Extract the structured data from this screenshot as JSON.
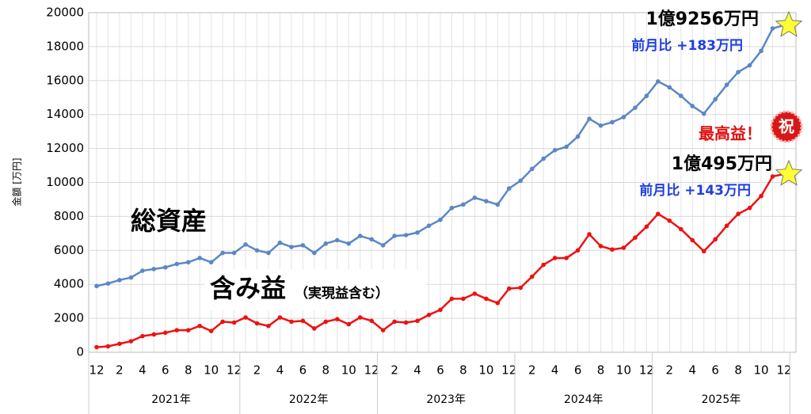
{
  "chart_data": {
    "type": "line",
    "y_label": "金額 [万円]",
    "categories": [
      "12",
      null,
      "2",
      null,
      "4",
      null,
      "6",
      null,
      "8",
      null,
      "10",
      null,
      "12",
      null,
      "2",
      null,
      "4",
      null,
      "6",
      null,
      "8",
      null,
      "10",
      null,
      "12",
      null,
      "2",
      null,
      "4",
      null,
      "6",
      null,
      "8",
      null,
      "10",
      null,
      "12",
      null,
      "2",
      null,
      "4",
      null,
      "6",
      null,
      "8",
      null,
      "10",
      null,
      "12",
      null,
      "2",
      null,
      "4",
      null,
      "6",
      null,
      "8",
      null,
      "10",
      null,
      "12"
    ],
    "year_groups": [
      "2021年",
      "2022年",
      "2023年",
      "2024年",
      "2025年"
    ],
    "series": [
      {
        "name": "総資産",
        "color": "#5b87c5",
        "values": [
          3900,
          4050,
          4250,
          4400,
          4800,
          4900,
          5000,
          5200,
          5300,
          5550,
          5300,
          5850,
          5850,
          6350,
          6000,
          5850,
          6450,
          6200,
          6300,
          5850,
          6400,
          6600,
          6400,
          6850,
          6650,
          6300,
          6850,
          6900,
          7050,
          7450,
          7800,
          8500,
          8700,
          9100,
          8900,
          8700,
          9650,
          10100,
          10800,
          11400,
          11900,
          12100,
          12700,
          13750,
          13350,
          13550,
          13850,
          14400,
          15100,
          15950,
          15600,
          15100,
          14500,
          14050,
          14900,
          15750,
          16500,
          16900,
          17750,
          19073,
          19256
        ]
      },
      {
        "name": "含み益",
        "name_note": "（実現益含む）",
        "color": "#ee1111",
        "values": [
          300,
          350,
          500,
          650,
          950,
          1050,
          1150,
          1300,
          1300,
          1550,
          1250,
          1800,
          1750,
          2050,
          1700,
          1550,
          2050,
          1800,
          1850,
          1400,
          1800,
          1950,
          1650,
          2050,
          1850,
          1300,
          1800,
          1750,
          1850,
          2200,
          2500,
          3150,
          3150,
          3450,
          3150,
          2900,
          3750,
          3800,
          4450,
          5150,
          5550,
          5550,
          6000,
          6950,
          6250,
          6050,
          6150,
          6750,
          7400,
          8150,
          7750,
          7250,
          6600,
          5950,
          6650,
          7450,
          8150,
          8500,
          9200,
          10352,
          10495
        ]
      }
    ],
    "annotations": {
      "total_latest": "1億9256万円",
      "total_change": "前月比 +183万円",
      "record": "最高益！",
      "celebrate": "祝",
      "gain_latest": "1億495万円",
      "gain_change": "前月比 +143万円"
    },
    "ylim": [
      0,
      20000
    ],
    "yticks": [
      0,
      2000,
      4000,
      6000,
      8000,
      10000,
      12000,
      14000,
      16000,
      18000,
      20000
    ],
    "grid": true
  }
}
